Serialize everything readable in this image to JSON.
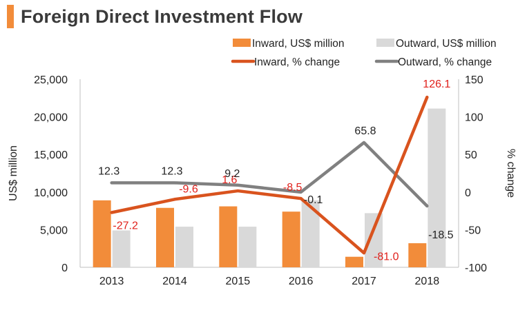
{
  "title": "Foreign Direct Investment Flow",
  "colors": {
    "inward_bar": "#F28C3A",
    "outward_bar": "#D9D9D9",
    "inward_line": "#D9531E",
    "outward_line": "#808080",
    "inward_label": "#E0201B",
    "outward_label": "#222222",
    "accent": "#F28C3A"
  },
  "chart_data": {
    "type": "bar+line",
    "title": "Foreign Direct Investment Flow",
    "categories": [
      "2013",
      "2014",
      "2015",
      "2016",
      "2017",
      "2018"
    ],
    "series": [
      {
        "name": "Inward, US$ million",
        "kind": "bar",
        "axis": "left",
        "values": [
          8900,
          7900,
          8100,
          7400,
          1400,
          3200
        ]
      },
      {
        "name": "Outward, US$ million",
        "kind": "bar",
        "axis": "left",
        "values": [
          4900,
          5400,
          5400,
          8900,
          7200,
          21100
        ]
      },
      {
        "name": "Inward, % change",
        "kind": "line",
        "axis": "right",
        "values": [
          -27.2,
          -9.6,
          1.6,
          -8.5,
          -81.0,
          126.1
        ],
        "labels": [
          "-27.2",
          "-9.6",
          "1.6",
          "-8.5",
          "-81.0",
          "126.1"
        ]
      },
      {
        "name": "Outward, % change",
        "kind": "line",
        "axis": "right",
        "values": [
          12.3,
          12.3,
          9.2,
          -0.1,
          65.8,
          -18.5
        ],
        "labels": [
          "12.3",
          "12.3",
          "9.2",
          "-0.1",
          "65.8",
          "-18.5"
        ]
      }
    ],
    "ylabel": "US$ million",
    "ylim": [
      0,
      25000
    ],
    "yticks": [
      "0",
      "5,000",
      "10,000",
      "15,000",
      "20,000",
      "25,000"
    ],
    "ytick_values": [
      0,
      5000,
      10000,
      15000,
      20000,
      25000
    ],
    "y2label": "% change",
    "y2lim": [
      -100,
      150
    ],
    "y2ticks": [
      "-100",
      "-50",
      "0",
      "50",
      "100",
      "150"
    ],
    "y2tick_values": [
      -100,
      -50,
      0,
      50,
      100,
      150
    ],
    "grid": false,
    "legend_position": "top-right"
  }
}
